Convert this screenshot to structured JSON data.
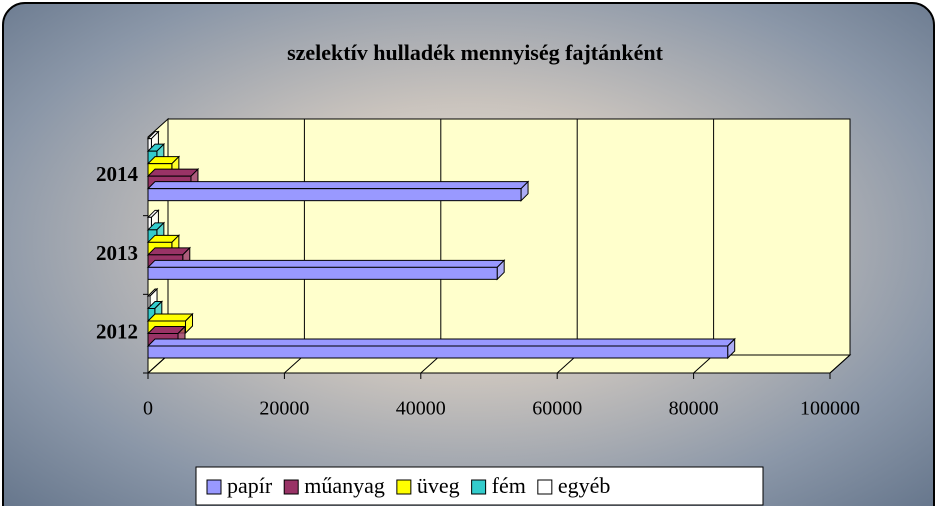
{
  "chart_data": {
    "type": "bar3d_horizontal",
    "title": "szelektív hulladék mennyiség fajtánként",
    "categories": [
      "2012",
      "2013",
      "2014"
    ],
    "series": [
      {
        "name": "papír",
        "color": "#9999ff",
        "values": [
          85000,
          51200,
          54700
        ]
      },
      {
        "name": "műanyag",
        "color": "#993366",
        "values": [
          4400,
          5100,
          6300
        ]
      },
      {
        "name": "üveg",
        "color": "#ffff00",
        "values": [
          5500,
          3500,
          3500
        ]
      },
      {
        "name": "fém",
        "color": "#33cccc",
        "values": [
          1000,
          1300,
          1300
        ]
      },
      {
        "name": "egyéb",
        "color": "#ffffff",
        "values": [
          300,
          500,
          500
        ]
      }
    ],
    "xlim": [
      0,
      100000
    ],
    "xticks": [
      0,
      20000,
      40000,
      60000,
      80000,
      100000
    ],
    "grid": true,
    "legend": "bottom"
  }
}
